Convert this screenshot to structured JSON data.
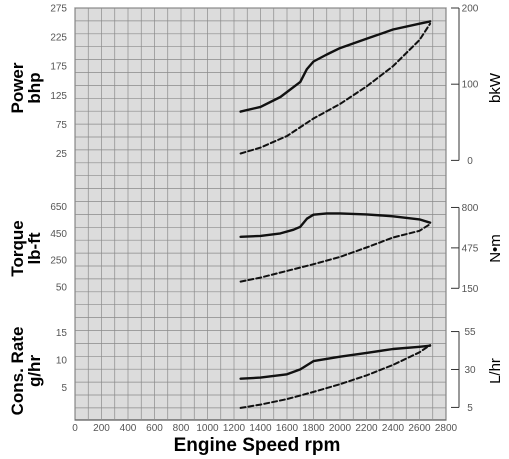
{
  "chart_data": {
    "type": "line",
    "xlabel": "Engine Speed rpm",
    "x_ticks": [
      "0",
      "200",
      "400",
      "600",
      "800",
      "1000",
      "1200",
      "1400",
      "1600",
      "1800",
      "2000",
      "2200",
      "2400",
      "2600",
      "2800"
    ],
    "xlim": [
      0,
      2800
    ],
    "grid": true,
    "panels": [
      {
        "ylabel_left": "Power\nbhp",
        "ylabel_right": "bkW",
        "ylim_left": [
          0,
          275
        ],
        "left_ticks": [
          "275",
          "225",
          "175",
          "125",
          "75",
          "25"
        ],
        "left_tick_values": [
          275,
          225,
          175,
          125,
          75,
          25
        ],
        "ylim_right": [
          -10,
          200
        ],
        "right_ticks": [
          "200",
          "100",
          "0"
        ],
        "right_tick_values": [
          200,
          100,
          0
        ],
        "series": [
          {
            "style": "solid",
            "x": [
              1250,
              1400,
              1550,
              1700,
              1750,
              1800,
              1900,
              2000,
              2200,
              2400,
              2600,
              2680
            ],
            "y": [
              97,
              105,
              122,
              148,
              170,
              183,
              195,
              206,
              222,
              238,
              248,
              252
            ]
          },
          {
            "style": "dashed",
            "x": [
              1250,
              1400,
              1600,
              1800,
              2000,
              2200,
              2400,
              2600,
              2680
            ],
            "y": [
              25,
              35,
              55,
              85,
              110,
              140,
              175,
              220,
              248
            ]
          }
        ]
      },
      {
        "ylabel_left": "Torque\nlb-ft",
        "ylabel_right": "N•m",
        "ylim_left": [
          -25,
          700
        ],
        "left_ticks": [
          "650",
          "450",
          "250",
          "50"
        ],
        "left_tick_values": [
          650,
          450,
          250,
          50
        ],
        "ylim_right": [
          80,
          860
        ],
        "right_ticks": [
          "800",
          "475",
          "150"
        ],
        "right_tick_values": [
          800,
          475,
          150
        ],
        "series": [
          {
            "style": "solid",
            "x": [
              1250,
              1400,
              1550,
              1650,
              1700,
              1750,
              1800,
              1900,
              2000,
              2200,
              2400,
              2600,
              2680
            ],
            "y": [
              425,
              432,
              450,
              478,
              500,
              560,
              590,
              600,
              600,
              592,
              578,
              555,
              530
            ]
          },
          {
            "style": "dashed",
            "x": [
              1250,
              1400,
              1600,
              1800,
              2000,
              2200,
              2400,
              2600,
              2680
            ],
            "y": [
              90,
              120,
              170,
              220,
              275,
              345,
              420,
              470,
              520
            ]
          }
        ]
      },
      {
        "ylabel_left": "Cons. Rate\ng/hr",
        "ylabel_right": "L/hr",
        "ylim_left": [
          0,
          16
        ],
        "left_ticks": [
          "15",
          "10",
          "5"
        ],
        "left_tick_values": [
          15,
          10,
          5
        ],
        "ylim_right": [
          0,
          58
        ],
        "right_ticks": [
          "55",
          "30",
          "5"
        ],
        "right_tick_values": [
          55,
          30,
          5
        ],
        "series": [
          {
            "style": "solid",
            "x": [
              1250,
              1400,
              1600,
              1700,
              1800,
              2000,
              2200,
              2400,
              2600,
              2680
            ],
            "y": [
              6.6,
              6.8,
              7.4,
              8.3,
              9.8,
              10.6,
              11.3,
              12,
              12.4,
              12.6
            ]
          },
          {
            "style": "dashed",
            "x": [
              1250,
              1400,
              1600,
              1800,
              2000,
              2200,
              2400,
              2600,
              2680
            ],
            "y": [
              1.3,
              1.9,
              2.9,
              4.2,
              5.6,
              7.2,
              9.1,
              11.4,
              12.7
            ]
          }
        ]
      }
    ]
  }
}
